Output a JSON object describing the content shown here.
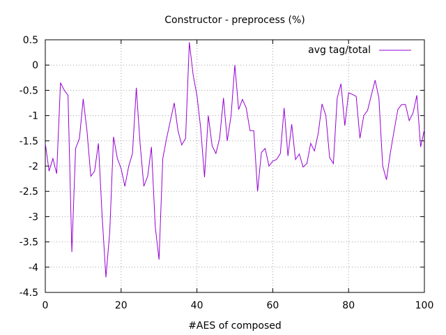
{
  "chart_data": {
    "type": "line",
    "title": "Constructor - preprocess (%)",
    "xlabel": "#AES of composed",
    "ylabel": "",
    "xlim": [
      0,
      100
    ],
    "ylim": [
      -4.5,
      0.5
    ],
    "xticks": [
      0,
      20,
      40,
      60,
      80,
      100
    ],
    "yticks": [
      0.5,
      0,
      -0.5,
      -1,
      -1.5,
      -2,
      -2.5,
      -3,
      -3.5,
      -4,
      -4.5
    ],
    "xtick_labels": [
      "0",
      "20",
      "40",
      "60",
      "80",
      "100"
    ],
    "ytick_labels": [
      "0.5",
      "0",
      "-0.5",
      "-1",
      "-1.5",
      "-2",
      "-2.5",
      "-3",
      "-3.5",
      "-4",
      "-4.5"
    ],
    "grid": true,
    "legend_position": "top-right",
    "series": [
      {
        "name": "avg tag/total",
        "color": "#9400d3",
        "x": [
          0,
          1,
          2,
          3,
          4,
          5,
          6,
          7,
          8,
          9,
          10,
          11,
          12,
          13,
          14,
          15,
          16,
          17,
          18,
          19,
          20,
          21,
          22,
          23,
          24,
          25,
          26,
          27,
          28,
          29,
          30,
          31,
          32,
          33,
          34,
          35,
          36,
          37,
          38,
          39,
          40,
          41,
          42,
          43,
          44,
          45,
          46,
          47,
          48,
          49,
          50,
          51,
          52,
          53,
          54,
          55,
          56,
          57,
          58,
          59,
          60,
          61,
          62,
          63,
          64,
          65,
          66,
          67,
          68,
          69,
          70,
          71,
          72,
          73,
          74,
          75,
          76,
          77,
          78,
          79,
          80,
          81,
          82,
          83,
          84,
          85,
          86,
          87,
          88,
          89,
          90,
          91,
          92,
          93,
          94,
          95,
          96,
          97,
          98,
          99,
          100
        ],
        "values": [
          -1.55,
          -2.1,
          -1.85,
          -2.15,
          -0.35,
          -0.5,
          -0.6,
          -3.7,
          -1.65,
          -1.45,
          -0.67,
          -1.3,
          -2.2,
          -2.1,
          -1.55,
          -3.0,
          -4.2,
          -3.3,
          -1.42,
          -1.85,
          -2.05,
          -2.4,
          -2.0,
          -1.75,
          -0.45,
          -1.55,
          -2.4,
          -2.2,
          -1.62,
          -3.2,
          -3.85,
          -1.85,
          -1.45,
          -1.1,
          -0.75,
          -1.3,
          -1.58,
          -1.45,
          0.45,
          -0.2,
          -0.6,
          -1.25,
          -2.22,
          -1.0,
          -1.6,
          -1.75,
          -1.45,
          -0.65,
          -1.5,
          -1.0,
          0.0,
          -0.88,
          -0.68,
          -0.85,
          -1.3,
          -1.3,
          -2.5,
          -1.73,
          -1.65,
          -2.0,
          -1.9,
          -1.87,
          -1.75,
          -0.85,
          -1.8,
          -1.17,
          -1.87,
          -1.76,
          -2.02,
          -1.95,
          -1.55,
          -1.7,
          -1.35,
          -0.77,
          -1.0,
          -1.83,
          -1.95,
          -0.65,
          -0.37,
          -1.2,
          -0.55,
          -0.58,
          -0.62,
          -1.45,
          -1.0,
          -0.9,
          -0.6,
          -0.3,
          -0.65,
          -2.0,
          -2.27,
          -1.75,
          -1.3,
          -0.88,
          -0.78,
          -0.78,
          -1.1,
          -0.95,
          -0.6,
          -1.62,
          -1.28
        ]
      }
    ]
  }
}
